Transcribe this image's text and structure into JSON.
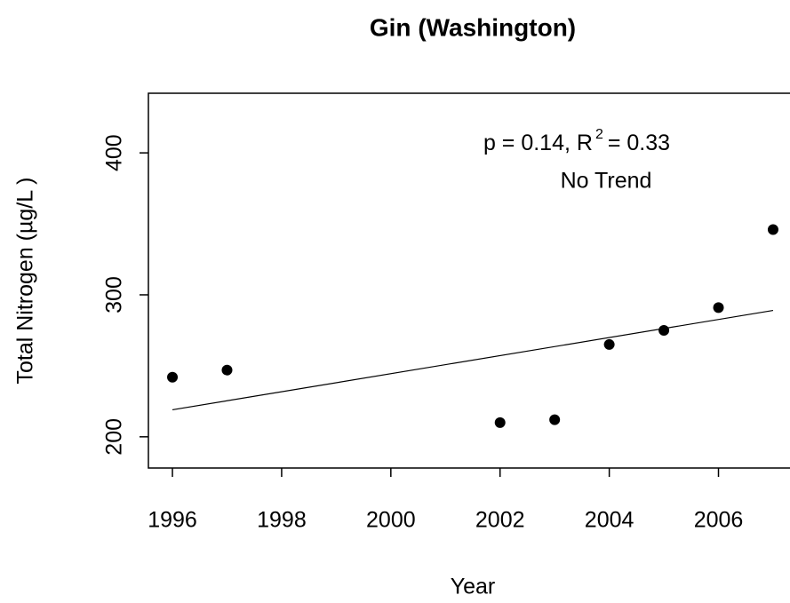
{
  "chart_data": {
    "type": "scatter",
    "title": "Gin (Washington)",
    "x_label": "Year",
    "y_label": "Total Nitrogen (µg/L )",
    "x": [
      1996,
      1997,
      2002,
      2003,
      2004,
      2005,
      2006,
      2007
    ],
    "values": [
      242,
      247,
      210,
      212,
      265,
      275,
      291,
      346
    ],
    "color": "#000000",
    "trend": {
      "x": [
        1996,
        2007
      ],
      "values": [
        219,
        289
      ]
    },
    "annotation": [
      "p = 0.14, R",
      "2",
      "= 0.33"
    ],
    "annotation_trend": "No Trend",
    "xlim": [
      1995.56,
      2007.44
    ],
    "xticks": [
      1996,
      1998,
      2000,
      2002,
      2004,
      2006
    ],
    "ylim": [
      178,
      442
    ],
    "yticks": [
      200,
      300,
      400
    ]
  }
}
